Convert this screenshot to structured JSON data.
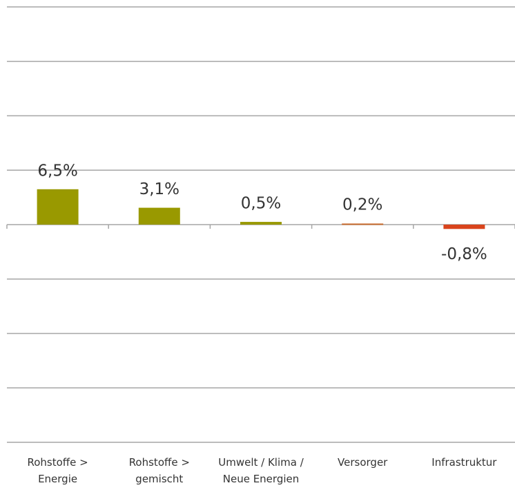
{
  "chart_data": {
    "type": "bar",
    "categories": [
      "Rohstoffe > Energie",
      "Rohstoffe > gemischt",
      "Umwelt / Klima / Neue Energien",
      "Versorger",
      "Infrastruktur"
    ],
    "values": [
      6.5,
      3.1,
      0.5,
      0.2,
      -0.8
    ],
    "value_labels": [
      "6,5%",
      "3,1%",
      "0,5%",
      "0,2%",
      "-0,8%"
    ],
    "colors": [
      "#999900",
      "#999900",
      "#999900",
      "#c86a2c",
      "#d9441c"
    ],
    "ylim": [
      -40,
      40
    ],
    "yticks": [
      -40,
      -30,
      -20,
      -10,
      0,
      10,
      20,
      30,
      40
    ],
    "grid": true
  }
}
